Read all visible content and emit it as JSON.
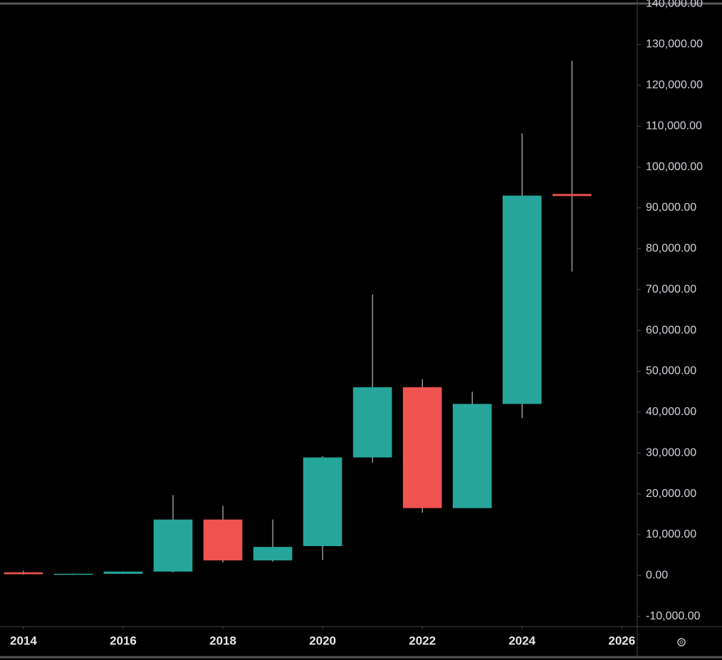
{
  "chart_data": {
    "type": "candlestick",
    "x": [
      2014,
      2015,
      2016,
      2017,
      2018,
      2019,
      2020,
      2021,
      2022,
      2023,
      2024,
      2025
    ],
    "open": [
      771,
      314,
      430,
      964,
      13700,
      3700,
      7200,
      28900,
      46100,
      16500,
      42000,
      93400
    ],
    "high": [
      1160,
      495,
      980,
      19700,
      17060,
      13700,
      29200,
      68800,
      48000,
      45000,
      108200,
      126000
    ],
    "low": [
      200,
      152,
      350,
      780,
      3200,
      3400,
      3800,
      27600,
      15400,
      16500,
      38500,
      74400
    ],
    "close": [
      320,
      430,
      964,
      13700,
      3700,
      7000,
      28900,
      46100,
      16500,
      42000,
      93000,
      92900
    ],
    "up_color": "#26a69a",
    "down_color": "#ef5350",
    "xlim": [
      2013.53,
      2026.31
    ],
    "xticks": [
      2014,
      2016,
      2018,
      2020,
      2022,
      2024,
      2026
    ],
    "ylim": [
      -12490,
      140880
    ],
    "yticks": [
      {
        "value": -10000,
        "label": "-10,000.00"
      },
      {
        "value": 0,
        "label": "0.00"
      },
      {
        "value": 10000,
        "label": "10,000.00"
      },
      {
        "value": 20000,
        "label": "20,000.00"
      },
      {
        "value": 30000,
        "label": "30,000.00"
      },
      {
        "value": 40000,
        "label": "40,000.00"
      },
      {
        "value": 50000,
        "label": "50,000.00"
      },
      {
        "value": 60000,
        "label": "60,000.00"
      },
      {
        "value": 70000,
        "label": "70,000.00"
      },
      {
        "value": 80000,
        "label": "80,000.00"
      },
      {
        "value": 90000,
        "label": "90,000.00"
      },
      {
        "value": 100000,
        "label": "100,000.00"
      },
      {
        "value": 110000,
        "label": "110,000.00"
      },
      {
        "value": 120000,
        "label": "120,000.00"
      },
      {
        "value": 130000,
        "label": "130,000.00"
      },
      {
        "value": 140000,
        "label": "140,000.00"
      }
    ],
    "grid": false
  }
}
